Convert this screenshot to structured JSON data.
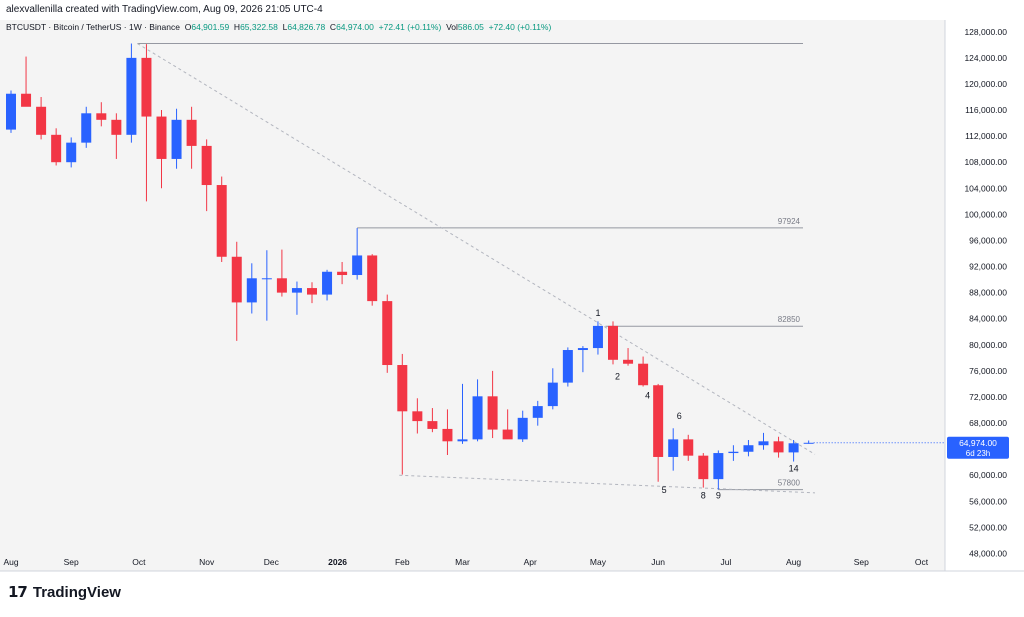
{
  "header": {
    "creator_line": "alexvallenilla created with TradingView.com, Aug 09, 2026 21:05 UTC-4",
    "symbol_line": "BTCUSDT · Bitcoin / TetherUS · 1W · Binance",
    "open_label": "O",
    "open_value": "64,901.59",
    "high_label": "H",
    "high_value": "65,322.58",
    "low_label": "L",
    "low_value": "64,826.78",
    "close_label": "C",
    "close_value": "64,974.00",
    "change_value": "+72.41 (+0.11%)",
    "vol_label": "Vol",
    "vol_value": "586.05",
    "vol_change": "+72.40 (+0.11%)"
  },
  "price_badge": {
    "price": "64,974.00",
    "countdown": "6d 23h"
  },
  "logo": {
    "mark": "17",
    "text": "TradingView"
  },
  "colors": {
    "up": "#2962ff",
    "down": "#f23645",
    "level_line": "#9598a1",
    "trend_line": "#b2b5be",
    "badge": "#2962ff",
    "background": "#f4f4f4"
  },
  "chart_data": {
    "type": "candlestick",
    "ylim": [
      47000,
      129500
    ],
    "y_ticks": [
      "48,000.00",
      "52,000.00",
      "56,000.00",
      "60,000.00",
      "64,000.00",
      "68,000.00",
      "72,000.00",
      "76,000.00",
      "80,000.00",
      "84,000.00",
      "88,000.00",
      "92,000.00",
      "96,000.00",
      "100,000.00",
      "104,000.00",
      "108,000.00",
      "112,000.00",
      "116,000.00",
      "120,000.00",
      "124,000.00",
      "128,000.00"
    ],
    "y_tick_values": [
      48000,
      52000,
      56000,
      60000,
      64000,
      68000,
      72000,
      76000,
      80000,
      84000,
      88000,
      92000,
      96000,
      100000,
      104000,
      108000,
      112000,
      116000,
      120000,
      124000,
      128000
    ],
    "x_ticks": [
      {
        "label": "Aug",
        "index": 0,
        "bold": false
      },
      {
        "label": "Sep",
        "index": 4,
        "bold": false
      },
      {
        "label": "Oct",
        "index": 8.5,
        "bold": false
      },
      {
        "label": "Nov",
        "index": 13,
        "bold": false
      },
      {
        "label": "Dec",
        "index": 17.3,
        "bold": false
      },
      {
        "label": "2026",
        "index": 21.7,
        "bold": true
      },
      {
        "label": "Feb",
        "index": 26,
        "bold": false
      },
      {
        "label": "Mar",
        "index": 30,
        "bold": false
      },
      {
        "label": "Apr",
        "index": 34.5,
        "bold": false
      },
      {
        "label": "May",
        "index": 39,
        "bold": false
      },
      {
        "label": "Jun",
        "index": 43,
        "bold": false
      },
      {
        "label": "Jul",
        "index": 47.5,
        "bold": false
      },
      {
        "label": "Aug",
        "index": 52,
        "bold": false
      },
      {
        "label": "Sep",
        "index": 56.5,
        "bold": false
      },
      {
        "label": "Oct",
        "index": 60.5,
        "bold": false
      }
    ],
    "candles": [
      {
        "o": 113000,
        "h": 119000,
        "l": 112500,
        "c": 118500
      },
      {
        "o": 118500,
        "h": 124200,
        "l": 117000,
        "c": 116500
      },
      {
        "o": 116500,
        "h": 118000,
        "l": 111500,
        "c": 112200
      },
      {
        "o": 112200,
        "h": 113200,
        "l": 107500,
        "c": 108000
      },
      {
        "o": 108000,
        "h": 111800,
        "l": 107200,
        "c": 111000
      },
      {
        "o": 111000,
        "h": 116500,
        "l": 110200,
        "c": 115500
      },
      {
        "o": 115500,
        "h": 117200,
        "l": 113500,
        "c": 114500
      },
      {
        "o": 114500,
        "h": 115500,
        "l": 108500,
        "c": 112200
      },
      {
        "o": 112200,
        "h": 126200,
        "l": 111000,
        "c": 124000
      },
      {
        "o": 124000,
        "h": 126100,
        "l": 102000,
        "c": 115000
      },
      {
        "o": 115000,
        "h": 116000,
        "l": 104000,
        "c": 108500
      },
      {
        "o": 108500,
        "h": 116200,
        "l": 107000,
        "c": 114500
      },
      {
        "o": 114500,
        "h": 116500,
        "l": 107000,
        "c": 110500
      },
      {
        "o": 110500,
        "h": 111500,
        "l": 100500,
        "c": 104500
      },
      {
        "o": 104500,
        "h": 105800,
        "l": 92700,
        "c": 93500
      },
      {
        "o": 93500,
        "h": 95800,
        "l": 80600,
        "c": 86500
      },
      {
        "o": 86500,
        "h": 92500,
        "l": 84800,
        "c": 90200
      },
      {
        "o": 90200,
        "h": 94500,
        "l": 83700,
        "c": 90200
      },
      {
        "o": 90200,
        "h": 94600,
        "l": 87400,
        "c": 88000
      },
      {
        "o": 88000,
        "h": 89700,
        "l": 84600,
        "c": 88700
      },
      {
        "o": 88700,
        "h": 89600,
        "l": 86400,
        "c": 87700
      },
      {
        "o": 87700,
        "h": 91500,
        "l": 86800,
        "c": 91200
      },
      {
        "o": 91200,
        "h": 92700,
        "l": 89300,
        "c": 90700
      },
      {
        "o": 90700,
        "h": 97900,
        "l": 90000,
        "c": 93700
      },
      {
        "o": 93700,
        "h": 93900,
        "l": 86000,
        "c": 86700
      },
      {
        "o": 86700,
        "h": 87700,
        "l": 75700,
        "c": 76900
      },
      {
        "o": 76900,
        "h": 78600,
        "l": 60100,
        "c": 69800
      },
      {
        "o": 69800,
        "h": 71800,
        "l": 66400,
        "c": 68300
      },
      {
        "o": 68300,
        "h": 70300,
        "l": 66600,
        "c": 67100
      },
      {
        "o": 67100,
        "h": 70100,
        "l": 63100,
        "c": 65200
      },
      {
        "o": 65200,
        "h": 74000,
        "l": 64800,
        "c": 65500
      },
      {
        "o": 65500,
        "h": 74700,
        "l": 65200,
        "c": 72100
      },
      {
        "o": 72100,
        "h": 76000,
        "l": 65700,
        "c": 67000
      },
      {
        "o": 67000,
        "h": 70100,
        "l": 65800,
        "c": 65500
      },
      {
        "o": 65500,
        "h": 69900,
        "l": 65100,
        "c": 68800
      },
      {
        "o": 68800,
        "h": 71400,
        "l": 67600,
        "c": 70600
      },
      {
        "o": 70600,
        "h": 76400,
        "l": 70100,
        "c": 74200
      },
      {
        "o": 74200,
        "h": 79600,
        "l": 73600,
        "c": 79200
      },
      {
        "o": 79200,
        "h": 79800,
        "l": 75800,
        "c": 79500
      },
      {
        "o": 79500,
        "h": 83600,
        "l": 78500,
        "c": 82900
      },
      {
        "o": 82900,
        "h": 83600,
        "l": 77000,
        "c": 77700
      },
      {
        "o": 77700,
        "h": 79500,
        "l": 76800,
        "c": 77100
      },
      {
        "o": 77100,
        "h": 78200,
        "l": 73600,
        "c": 73800
      },
      {
        "o": 73800,
        "h": 74000,
        "l": 59000,
        "c": 62800
      },
      {
        "o": 62800,
        "h": 67200,
        "l": 60700,
        "c": 65500
      },
      {
        "o": 65500,
        "h": 66200,
        "l": 62200,
        "c": 63000
      },
      {
        "o": 63000,
        "h": 63400,
        "l": 58100,
        "c": 59400
      },
      {
        "o": 59400,
        "h": 63800,
        "l": 57800,
        "c": 63400
      },
      {
        "o": 63400,
        "h": 64600,
        "l": 62200,
        "c": 63600
      },
      {
        "o": 63600,
        "h": 65400,
        "l": 62900,
        "c": 64600
      },
      {
        "o": 64600,
        "h": 66500,
        "l": 63900,
        "c": 65200
      },
      {
        "o": 65200,
        "h": 65900,
        "l": 62700,
        "c": 63500
      },
      {
        "o": 63500,
        "h": 65400,
        "l": 62100,
        "c": 64900
      },
      {
        "o": 64900,
        "h": 65323,
        "l": 64827,
        "c": 64974
      }
    ],
    "levels": [
      {
        "value": 126200,
        "from": 8.4,
        "label": ""
      },
      {
        "value": 97924,
        "from": 23,
        "label": "97924"
      },
      {
        "value": 82850,
        "from": 39.5,
        "label": "82850"
      },
      {
        "value": 57800,
        "from": 47,
        "label": "57800"
      }
    ],
    "trendlines": [
      {
        "x1": 8.4,
        "y1": 126200,
        "x2": 54,
        "y2": 63200
      },
      {
        "x1": 25.8,
        "y1": 60000,
        "x2": 54,
        "y2": 57300
      }
    ],
    "wave_labels": [
      {
        "text": "1",
        "index": 39,
        "price": 84400
      },
      {
        "text": "2",
        "index": 40.3,
        "price": 74700
      },
      {
        "text": "4",
        "index": 42.3,
        "price": 71800
      },
      {
        "text": "5",
        "index": 43.4,
        "price": 57300
      },
      {
        "text": "6",
        "index": 44.4,
        "price": 68600
      },
      {
        "text": "8",
        "index": 46,
        "price": 56400
      },
      {
        "text": "9",
        "index": 47,
        "price": 56400
      },
      {
        "text": "14",
        "index": 52,
        "price": 60600
      }
    ]
  }
}
